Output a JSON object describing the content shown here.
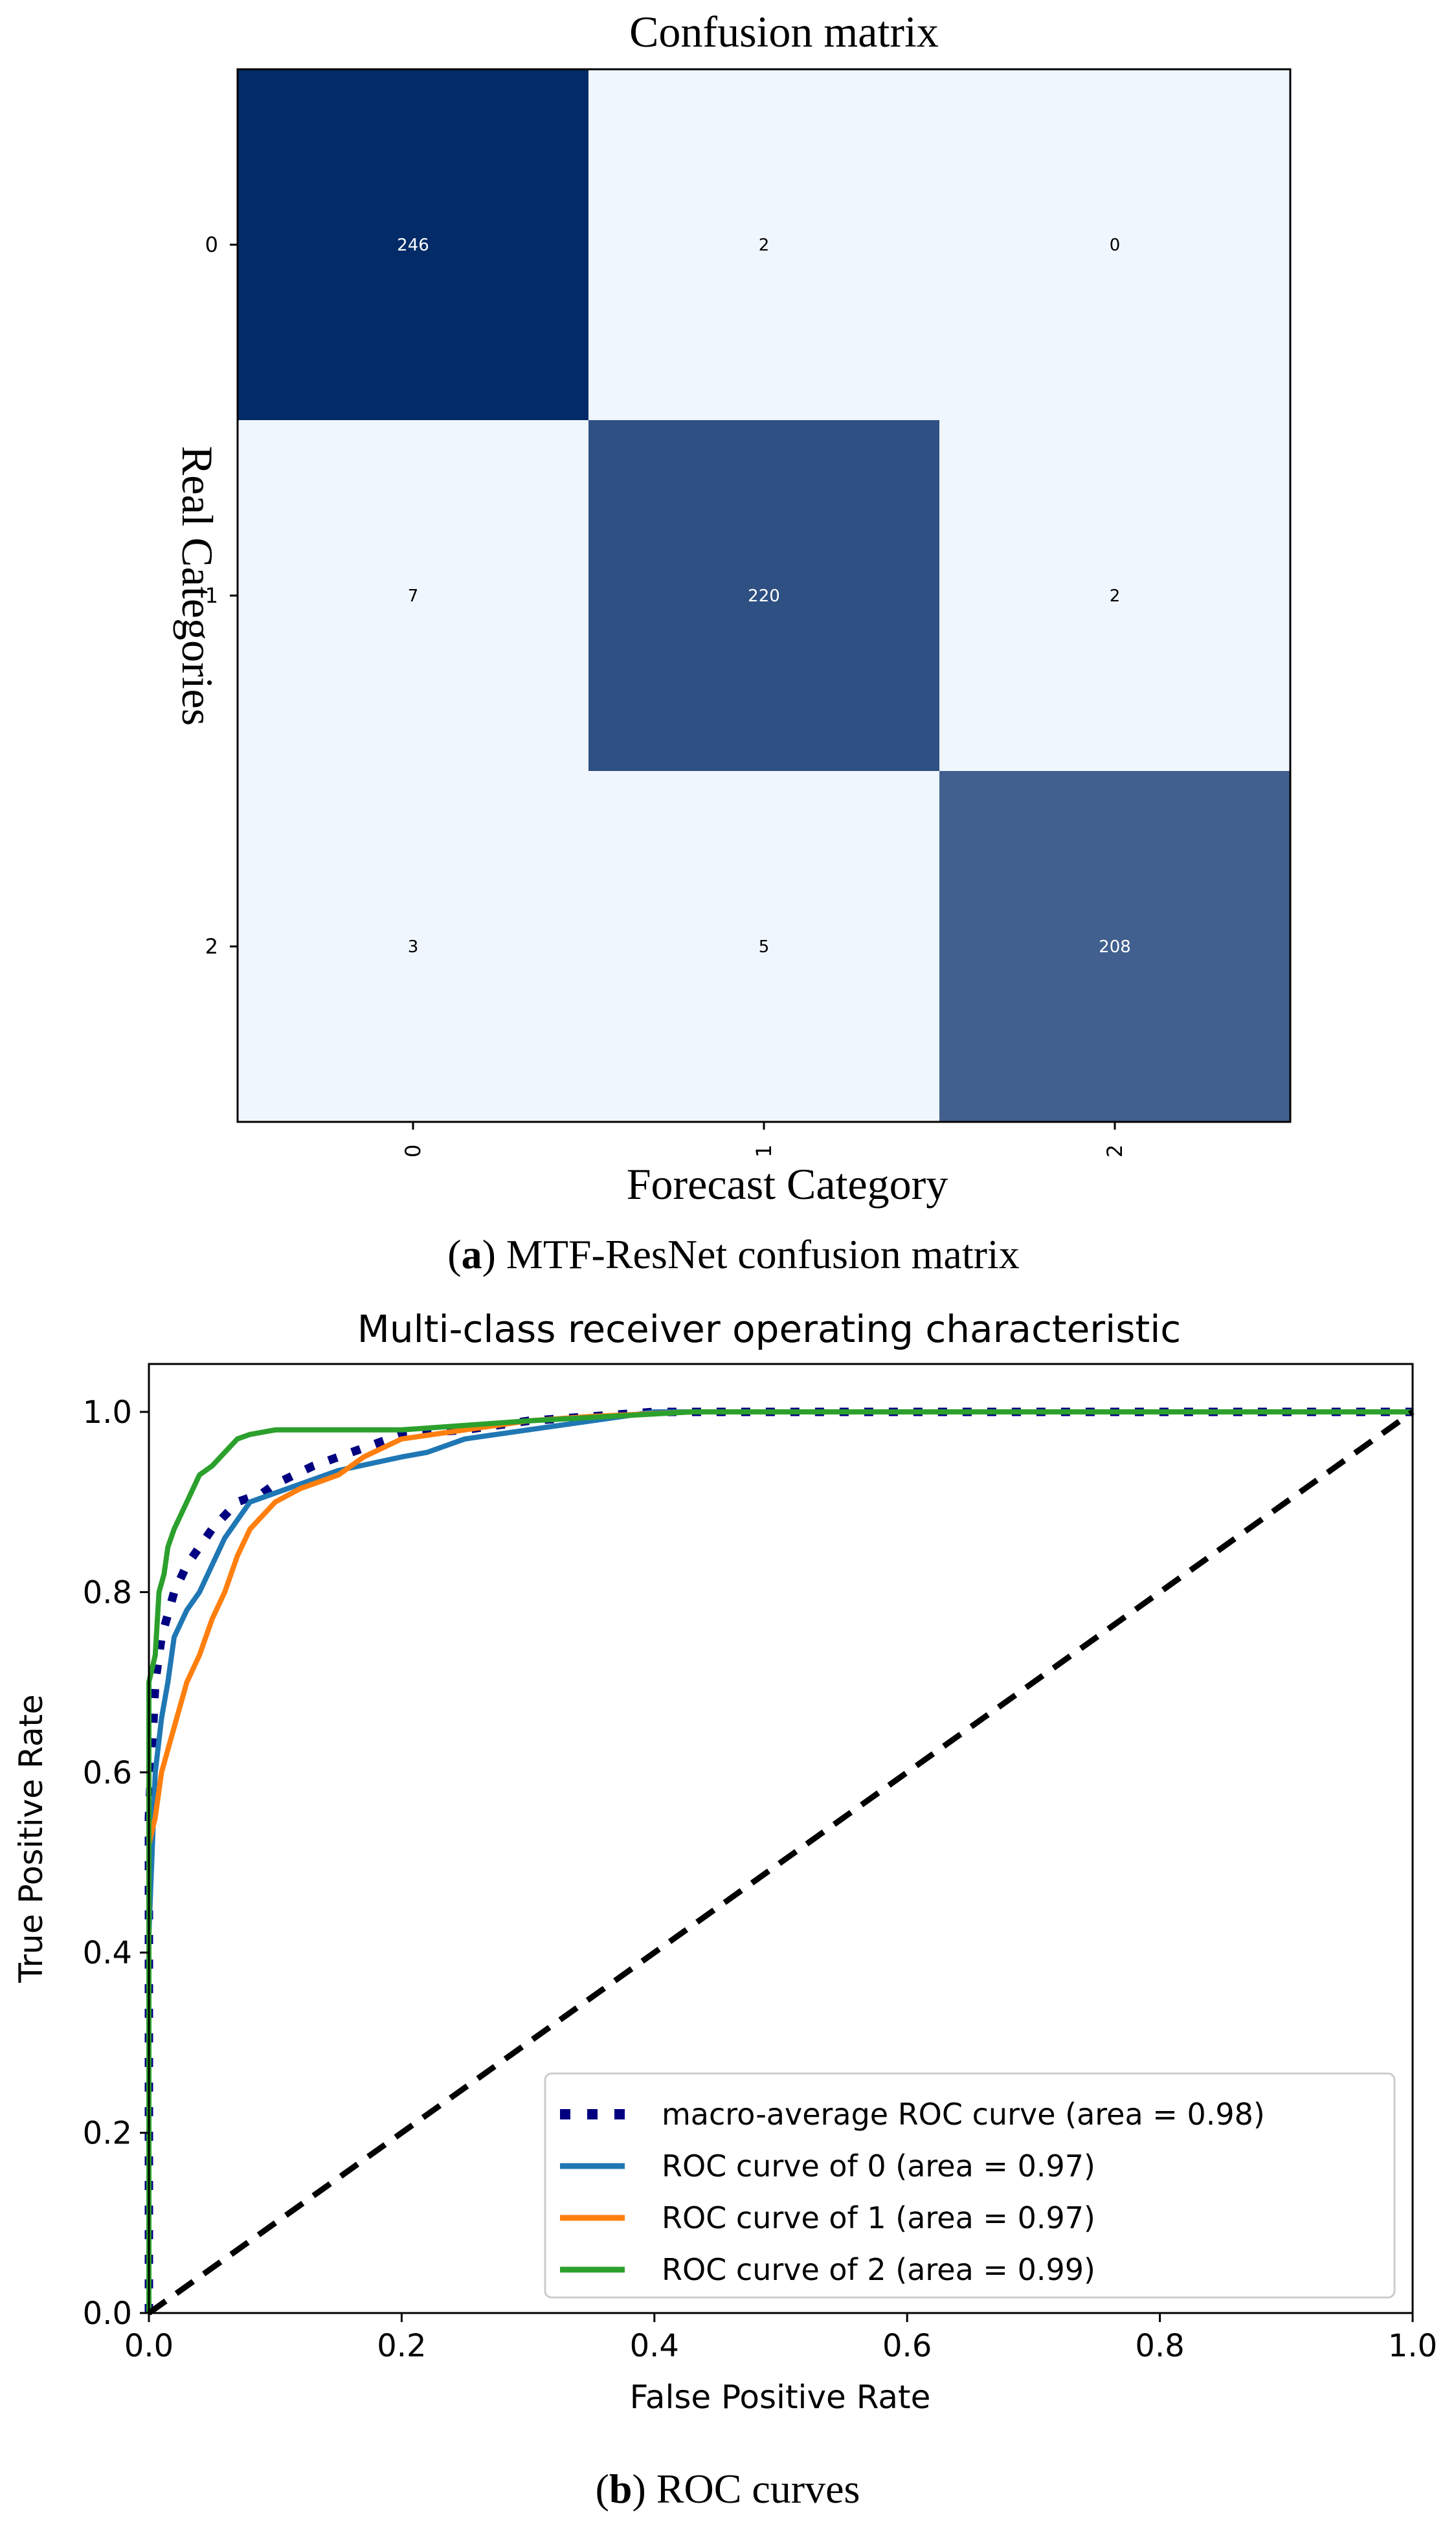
{
  "chart_data": [
    {
      "type": "heatmap",
      "title": "Confusion matrix",
      "xlabel": "Forecast Category",
      "ylabel": "Real Categories",
      "x_ticks": [
        "0",
        "1",
        "2"
      ],
      "y_ticks": [
        "0",
        "1",
        "2"
      ],
      "colormap": "Blues",
      "matrix": [
        [
          246,
          2,
          0
        ],
        [
          7,
          220,
          2
        ],
        [
          3,
          5,
          208
        ]
      ],
      "caption_label": "a",
      "caption_text": ") MTF-ResNet confusion matrix",
      "caption_open": "("
    },
    {
      "type": "line",
      "title": "Multi-class receiver operating characteristic",
      "xlabel": "False Positive Rate",
      "ylabel": "True Positive Rate",
      "xlim": [
        0.0,
        1.0
      ],
      "ylim": [
        0.0,
        1.05
      ],
      "x_ticks": [
        "0.0",
        "0.2",
        "0.4",
        "0.6",
        "0.8",
        "1.0"
      ],
      "y_ticks": [
        "0.0",
        "0.2",
        "0.4",
        "0.6",
        "0.8",
        "1.0"
      ],
      "legend_position": "lower-right",
      "series": [
        {
          "name": "macro-average ROC curve (area = 0.98)",
          "color": "#000080",
          "style": "dotted",
          "x": [
            0.0,
            0.0,
            0.005,
            0.01,
            0.02,
            0.03,
            0.04,
            0.05,
            0.07,
            0.09,
            0.1,
            0.13,
            0.15,
            0.18,
            0.2,
            0.25,
            0.3,
            0.35,
            0.4,
            1.0
          ],
          "y": [
            0.0,
            0.55,
            0.7,
            0.75,
            0.8,
            0.83,
            0.85,
            0.87,
            0.9,
            0.91,
            0.92,
            0.94,
            0.95,
            0.965,
            0.975,
            0.98,
            0.99,
            0.995,
            1.0,
            1.0
          ]
        },
        {
          "name": "ROC curve of 0 (area = 0.97)",
          "color": "#1f77b4",
          "style": "solid",
          "x": [
            0.0,
            0.0,
            0.005,
            0.01,
            0.015,
            0.02,
            0.03,
            0.04,
            0.05,
            0.06,
            0.08,
            0.1,
            0.12,
            0.15,
            0.2,
            0.22,
            0.25,
            0.3,
            0.35,
            0.4,
            1.0
          ],
          "y": [
            0.0,
            0.42,
            0.6,
            0.66,
            0.7,
            0.75,
            0.78,
            0.8,
            0.83,
            0.86,
            0.9,
            0.91,
            0.92,
            0.935,
            0.95,
            0.955,
            0.97,
            0.98,
            0.99,
            1.0,
            1.0
          ]
        },
        {
          "name": "ROC curve of 1 (area = 0.97)",
          "color": "#ff7f0e",
          "style": "solid",
          "x": [
            0.0,
            0.0,
            0.005,
            0.01,
            0.02,
            0.03,
            0.04,
            0.05,
            0.06,
            0.07,
            0.08,
            0.1,
            0.12,
            0.15,
            0.17,
            0.2,
            0.25,
            0.3,
            0.35,
            0.43,
            1.0
          ],
          "y": [
            0.0,
            0.52,
            0.55,
            0.6,
            0.65,
            0.7,
            0.73,
            0.77,
            0.8,
            0.84,
            0.87,
            0.9,
            0.915,
            0.93,
            0.95,
            0.97,
            0.98,
            0.99,
            0.995,
            1.0,
            1.0
          ]
        },
        {
          "name": "ROC curve of 2 (area = 0.99)",
          "color": "#2ca02c",
          "style": "solid",
          "x": [
            0.0,
            0.0,
            0.005,
            0.008,
            0.012,
            0.015,
            0.02,
            0.03,
            0.04,
            0.05,
            0.06,
            0.07,
            0.08,
            0.1,
            0.15,
            0.2,
            0.25,
            0.3,
            0.43,
            1.0
          ],
          "y": [
            0.0,
            0.7,
            0.73,
            0.8,
            0.82,
            0.85,
            0.87,
            0.9,
            0.93,
            0.94,
            0.955,
            0.97,
            0.975,
            0.98,
            0.98,
            0.98,
            0.985,
            0.99,
            1.0,
            1.0
          ]
        },
        {
          "name": "",
          "color": "#000000",
          "style": "dashed",
          "x": [
            0.0,
            1.0
          ],
          "y": [
            0.0,
            1.0
          ]
        }
      ],
      "caption_label": "b",
      "caption_text": ") ROC curves",
      "caption_open": "("
    }
  ]
}
